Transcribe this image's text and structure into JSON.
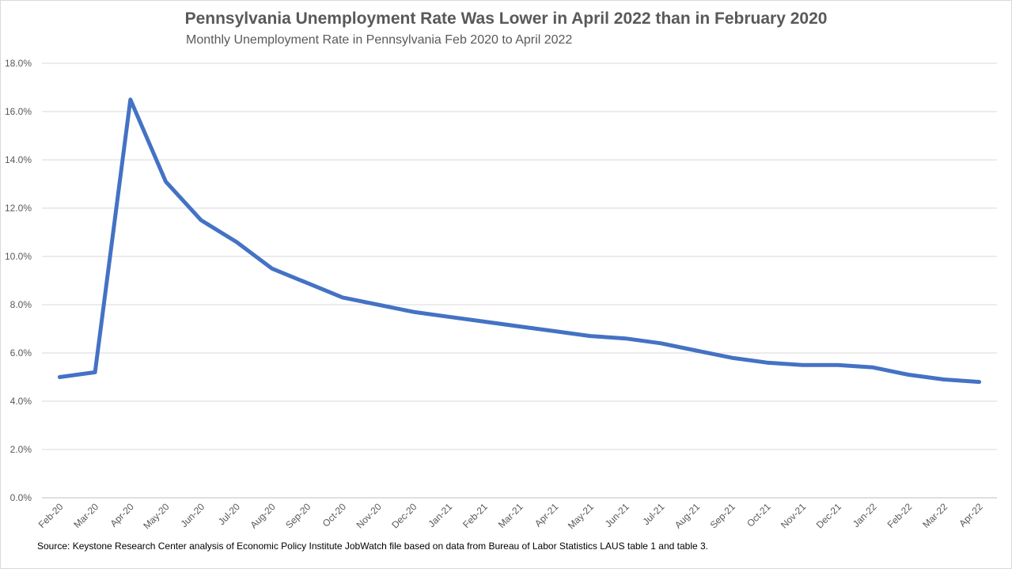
{
  "chart_data": {
    "type": "line",
    "title": "Pennsylvania Unemployment Rate Was Lower in April 2022 than in February 2020",
    "subtitle": "Monthly Unemployment Rate in  Pennsylvania Feb 2020 to April 2022",
    "source": "Source: Keystone Research Center analysis of Economic Policy Institute JobWatch file based on data from Bureau of Labor Statistics LAUS table 1 and table 3.",
    "xlabel": "",
    "ylabel": "",
    "ylim": [
      0,
      18
    ],
    "yticks": [
      "0.0%",
      "2.0%",
      "4.0%",
      "6.0%",
      "8.0%",
      "10.0%",
      "12.0%",
      "14.0%",
      "16.0%",
      "18.0%"
    ],
    "grid": true,
    "categories": [
      "Feb-20",
      "Mar-20",
      "Apr-20",
      "May-20",
      "Jun-20",
      "Jul-20",
      "Aug-20",
      "Sep-20",
      "Oct-20",
      "Nov-20",
      "Dec-20",
      "Jan-21",
      "Feb-21",
      "Mar-21",
      "Apr-21",
      "May-21",
      "Jun-21",
      "Jul-21",
      "Aug-21",
      "Sep-21",
      "Oct-21",
      "Nov-21",
      "Dec-21",
      "Jan-22",
      "Feb-22",
      "Mar-22",
      "Apr-22"
    ],
    "series": [
      {
        "values": [
          5.0,
          5.2,
          16.5,
          13.1,
          11.5,
          10.6,
          9.5,
          8.9,
          8.3,
          8.0,
          7.7,
          7.5,
          7.3,
          7.1,
          6.9,
          6.7,
          6.6,
          6.4,
          6.1,
          5.8,
          5.6,
          5.5,
          5.5,
          5.4,
          5.1,
          4.9,
          4.8
        ],
        "color": "#4472c4"
      }
    ]
  }
}
